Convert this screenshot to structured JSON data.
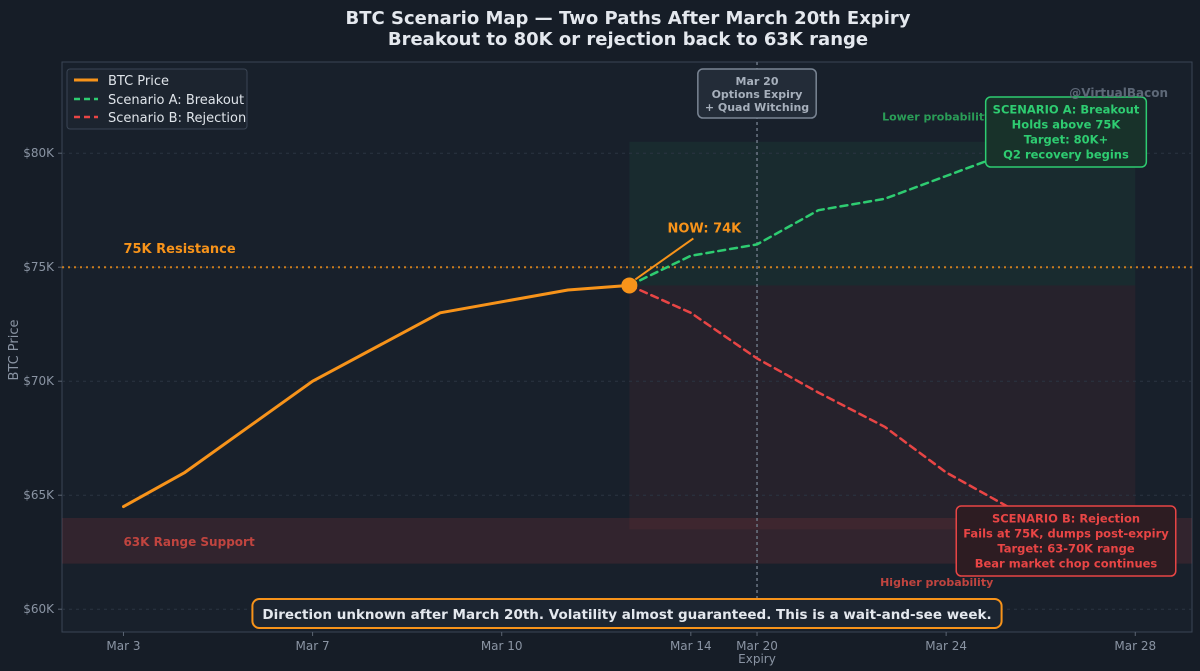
{
  "title": "BTC Scenario Map — Two Paths After March 20th Expiry",
  "subtitle": "Breakout to 80K or rejection back to 63K range",
  "watermark": "@VirtualBacon",
  "colors": {
    "background": "#161d27",
    "btc": "#f7931a",
    "scenario_a": "#2ecc71",
    "scenario_b": "#e84545",
    "grid": "#2a3442",
    "tick": "#8a94a3"
  },
  "chart_data": {
    "type": "line",
    "xlabel": "",
    "ylabel": "BTC Price",
    "x_ticks": [
      {
        "label": "Mar 3",
        "x": 0
      },
      {
        "label": "Mar 7",
        "x": 4
      },
      {
        "label": "Mar 10",
        "x": 8
      },
      {
        "label": "Mar 14",
        "x": 12
      },
      {
        "label": "Mar 20",
        "x": 13.4,
        "sublabel": "Expiry"
      },
      {
        "label": "Mar 24",
        "x": 17.4
      },
      {
        "label": "Mar 28",
        "x": 21.4
      }
    ],
    "xlim": [
      -1.3,
      22.6
    ],
    "ylim": [
      59000,
      84000
    ],
    "y_ticks": [
      {
        "label": "$60K",
        "value": 60000
      },
      {
        "label": "$65K",
        "value": 65000
      },
      {
        "label": "$70K",
        "value": 70000
      },
      {
        "label": "$75K",
        "value": 75000
      },
      {
        "label": "$80K",
        "value": 80000
      }
    ],
    "grid": true,
    "legend_position": "top-left",
    "series": [
      {
        "name": "BTC Price",
        "style": "solid",
        "points": [
          [
            0,
            64500
          ],
          [
            1.3,
            66000
          ],
          [
            4,
            70000
          ],
          [
            6.7,
            73000
          ],
          [
            9.4,
            74000
          ],
          [
            10.7,
            74200
          ]
        ]
      },
      {
        "name": "Scenario A: Breakout",
        "style": "dashed",
        "points": [
          [
            10.7,
            74200
          ],
          [
            12,
            75500
          ],
          [
            13.4,
            76000
          ],
          [
            14.7,
            77500
          ],
          [
            16.1,
            78000
          ],
          [
            17.4,
            79000
          ],
          [
            18.7,
            80000
          ],
          [
            20.1,
            79500
          ],
          [
            21.4,
            80500
          ]
        ]
      },
      {
        "name": "Scenario B: Rejection",
        "style": "dashed",
        "points": [
          [
            10.7,
            74200
          ],
          [
            12,
            73000
          ],
          [
            13.4,
            71000
          ],
          [
            14.7,
            69500
          ],
          [
            16.1,
            68000
          ],
          [
            17.4,
            66000
          ],
          [
            18.7,
            64500
          ],
          [
            20.1,
            63500
          ],
          [
            21.4,
            63500
          ]
        ]
      }
    ],
    "reference_lines": [
      {
        "type": "horizontal",
        "value": 75000,
        "label": "75K Resistance"
      },
      {
        "type": "vertical",
        "x": 13.4
      }
    ],
    "shaded_bands": [
      {
        "label": "63K Range Support",
        "from": 62000,
        "to": 64000
      }
    ],
    "current_point": {
      "x": 10.7,
      "value": 74200,
      "label": "NOW: 74K"
    },
    "annotations": {
      "expiry_box": [
        "Mar 20",
        "Options Expiry",
        "+ Quad Witching"
      ],
      "scenario_a_box": [
        "SCENARIO A: Breakout",
        "Holds above 75K",
        "Target: 80K+",
        "Q2 recovery begins"
      ],
      "scenario_b_box": [
        "SCENARIO B: Rejection",
        "Fails at 75K, dumps post-expiry",
        "Target: 63-70K range",
        "Bear market chop continues"
      ],
      "lower_probability": "Lower probability",
      "higher_probability": "Higher probability",
      "footer_note": "Direction unknown after March 20th. Volatility almost guaranteed. This is a wait-and-see week."
    }
  }
}
